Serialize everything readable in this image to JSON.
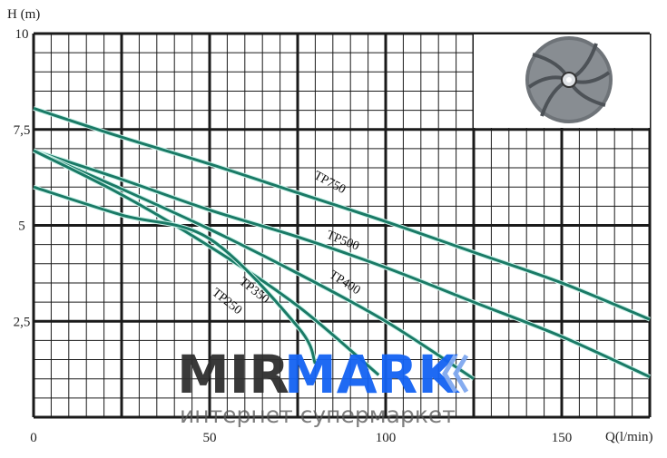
{
  "chart_data": {
    "type": "line",
    "title": "",
    "xlabel": "Q(l/min)",
    "ylabel": "H (m)",
    "xlim": [
      0,
      175
    ],
    "ylim": [
      0,
      10
    ],
    "x_ticks": [
      "0",
      "50",
      "100",
      "150"
    ],
    "x_tick_values": [
      0,
      50,
      100,
      150
    ],
    "y_ticks": [
      "10",
      "7,5",
      "5",
      "2,5"
    ],
    "y_tick_values": [
      10,
      7.5,
      5,
      2.5
    ],
    "grid": true,
    "line_color": "#1a7a66",
    "series": [
      {
        "name": "TP750",
        "x": [
          0,
          25,
          50,
          75,
          100,
          125,
          150,
          175
        ],
        "y": [
          8.05,
          7.3,
          6.6,
          5.85,
          5.1,
          4.3,
          3.5,
          2.55
        ]
      },
      {
        "name": "TP500",
        "x": [
          0,
          25,
          50,
          75,
          100,
          125,
          150,
          175
        ],
        "y": [
          6.95,
          6.2,
          5.4,
          4.7,
          3.9,
          3.0,
          2.1,
          1.05
        ]
      },
      {
        "name": "TP400",
        "x": [
          0,
          25,
          50,
          75,
          100,
          125
        ],
        "y": [
          6.95,
          5.95,
          4.9,
          3.75,
          2.5,
          1.0
        ]
      },
      {
        "name": "TP350",
        "x": [
          0,
          25,
          50,
          75,
          98
        ],
        "y": [
          6.95,
          5.8,
          4.45,
          2.9,
          1.1
        ]
      },
      {
        "name": "TP250",
        "x": [
          0,
          25,
          50,
          75,
          80
        ],
        "y": [
          6.0,
          5.27,
          4.65,
          2.36,
          1.4
        ]
      }
    ]
  },
  "watermark": {
    "brand_dark": "MIR",
    "brand_blue": "MARK",
    "tagline": "интернет супермаркет"
  }
}
